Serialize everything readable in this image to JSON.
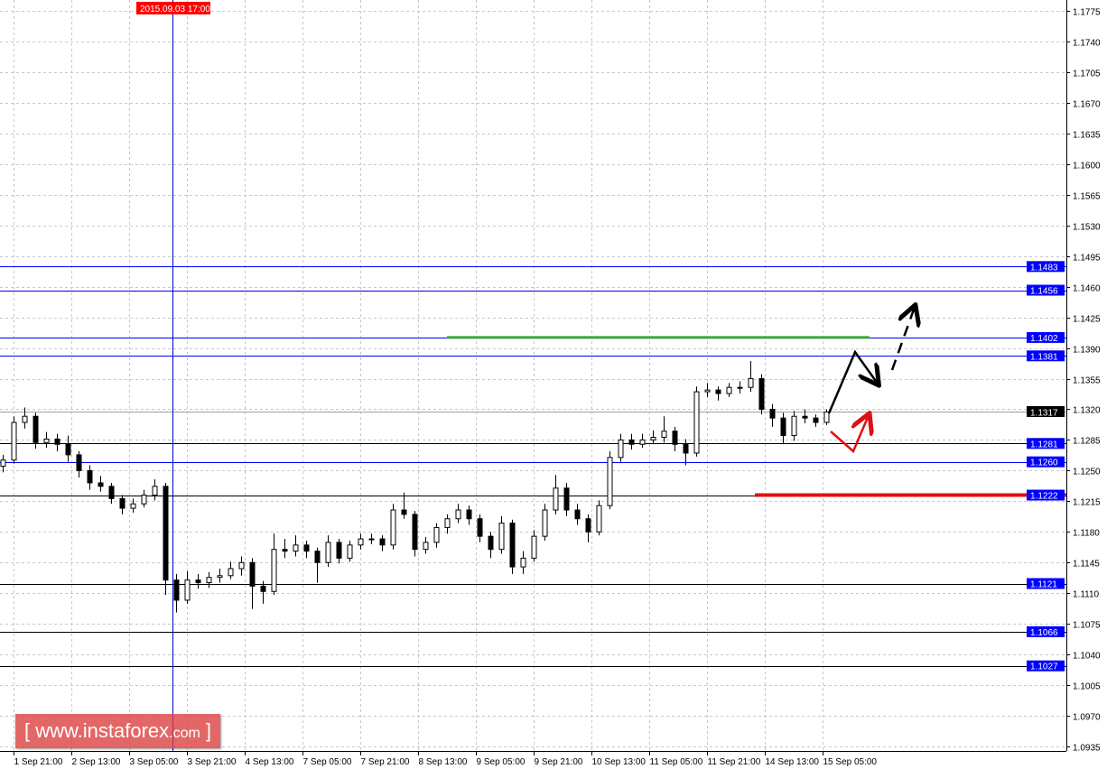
{
  "chart_data": {
    "type": "candlestick",
    "symbol_timeframe": "H1",
    "ylim": [
      1.0935,
      1.1775
    ],
    "y_ticks": [
      "1.1775",
      "1.1740",
      "1.1705",
      "1.1670",
      "1.1635",
      "1.1600",
      "1.1565",
      "1.1530",
      "1.1495",
      "1.1460",
      "1.1425",
      "1.1390",
      "1.1355",
      "1.1320",
      "1.1285",
      "1.1250",
      "1.1215",
      "1.1180",
      "1.1145",
      "1.1110",
      "1.1075",
      "1.1040",
      "1.1005",
      "1.0970",
      "1.0935"
    ],
    "x_ticks": [
      "1 Sep 21:00",
      "2 Sep 13:00",
      "3 Sep 05:00",
      "3 Sep 21:00",
      "4 Sep 13:00",
      "7 Sep 05:00",
      "7 Sep 21:00",
      "8 Sep 13:00",
      "9 Sep 05:00",
      "9 Sep 21:00",
      "10 Sep 13:00",
      "11 Sep 05:00",
      "11 Sep 21:00",
      "14 Sep 13:00",
      "15 Sep 05:00"
    ],
    "grid": true,
    "crosshair_time": "2015.09.03 17:00",
    "current_price": "1.1317",
    "levels": [
      {
        "price": "1.1483",
        "color": "#0000ff"
      },
      {
        "price": "1.1456",
        "color": "#0000ff"
      },
      {
        "price": "1.1402",
        "color": "#0000ff"
      },
      {
        "price": "1.1381",
        "color": "#0000ff"
      },
      {
        "price": "1.1281",
        "color": "#000000"
      },
      {
        "price": "1.1260",
        "color": "#0000ff"
      },
      {
        "price": "1.1222",
        "color": "#000000"
      },
      {
        "price": "1.1121",
        "color": "#000000"
      },
      {
        "price": "1.1066",
        "color": "#000000"
      },
      {
        "price": "1.1027",
        "color": "#000000"
      }
    ],
    "target_line": {
      "price": 1.1402,
      "color": "#3aa63a"
    },
    "stop_line": {
      "price": 1.1222,
      "color": "#e01010"
    },
    "ohlc": [
      [
        1.1255,
        1.1268,
        1.1248,
        1.1262
      ],
      [
        1.1262,
        1.1312,
        1.1258,
        1.1305
      ],
      [
        1.1305,
        1.1322,
        1.1298,
        1.1312
      ],
      [
        1.1312,
        1.1316,
        1.1275,
        1.1282
      ],
      [
        1.1282,
        1.1294,
        1.1276,
        1.1286
      ],
      [
        1.1286,
        1.1292,
        1.1272,
        1.128
      ],
      [
        1.128,
        1.129,
        1.126,
        1.1268
      ],
      [
        1.1268,
        1.1272,
        1.1242,
        1.125
      ],
      [
        1.125,
        1.1256,
        1.1228,
        1.1236
      ],
      [
        1.1236,
        1.1244,
        1.1226,
        1.1232
      ],
      [
        1.1232,
        1.1236,
        1.1212,
        1.1218
      ],
      [
        1.1218,
        1.1222,
        1.12,
        1.1207
      ],
      [
        1.1207,
        1.1218,
        1.1202,
        1.1212
      ],
      [
        1.1212,
        1.1228,
        1.1208,
        1.1222
      ],
      [
        1.1222,
        1.124,
        1.1216,
        1.1232
      ],
      [
        1.1232,
        1.1236,
        1.1108,
        1.1125
      ],
      [
        1.1125,
        1.1132,
        1.1088,
        1.1102
      ],
      [
        1.1102,
        1.1135,
        1.1098,
        1.1125
      ],
      [
        1.1125,
        1.1132,
        1.1115,
        1.1122
      ],
      [
        1.1122,
        1.1134,
        1.1116,
        1.1128
      ],
      [
        1.1128,
        1.1138,
        1.1122,
        1.113
      ],
      [
        1.113,
        1.1146,
        1.1126,
        1.1138
      ],
      [
        1.1138,
        1.1152,
        1.113,
        1.1145
      ],
      [
        1.1145,
        1.115,
        1.1092,
        1.1118
      ],
      [
        1.1118,
        1.1124,
        1.1098,
        1.1112
      ],
      [
        1.1112,
        1.1178,
        1.1108,
        1.116
      ],
      [
        1.116,
        1.1172,
        1.115,
        1.1158
      ],
      [
        1.1158,
        1.1176,
        1.1152,
        1.1165
      ],
      [
        1.1165,
        1.117,
        1.115,
        1.1158
      ],
      [
        1.1158,
        1.1162,
        1.1122,
        1.1145
      ],
      [
        1.1145,
        1.1176,
        1.114,
        1.1168
      ],
      [
        1.1168,
        1.1172,
        1.1144,
        1.115
      ],
      [
        1.115,
        1.117,
        1.1146,
        1.1165
      ],
      [
        1.1165,
        1.1178,
        1.116,
        1.1172
      ],
      [
        1.1172,
        1.1178,
        1.1166,
        1.1172
      ],
      [
        1.1172,
        1.1176,
        1.1158,
        1.1165
      ],
      [
        1.1165,
        1.1212,
        1.116,
        1.1205
      ],
      [
        1.1205,
        1.1225,
        1.1195,
        1.12
      ],
      [
        1.12,
        1.1204,
        1.1152,
        1.116
      ],
      [
        1.116,
        1.1174,
        1.1155,
        1.1168
      ],
      [
        1.1168,
        1.119,
        1.1162,
        1.1185
      ],
      [
        1.1185,
        1.12,
        1.1178,
        1.1195
      ],
      [
        1.1195,
        1.1212,
        1.119,
        1.1205
      ],
      [
        1.1205,
        1.121,
        1.1188,
        1.1195
      ],
      [
        1.1195,
        1.12,
        1.1168,
        1.1175
      ],
      [
        1.1175,
        1.118,
        1.115,
        1.116
      ],
      [
        1.116,
        1.1198,
        1.1155,
        1.119
      ],
      [
        1.119,
        1.1194,
        1.1132,
        1.114
      ],
      [
        1.114,
        1.1158,
        1.1132,
        1.115
      ],
      [
        1.115,
        1.1182,
        1.1146,
        1.1175
      ],
      [
        1.1175,
        1.1212,
        1.117,
        1.1205
      ],
      [
        1.1205,
        1.1245,
        1.12,
        1.123
      ],
      [
        1.123,
        1.1236,
        1.1198,
        1.1205
      ],
      [
        1.1205,
        1.1212,
        1.1188,
        1.1195
      ],
      [
        1.1195,
        1.12,
        1.1168,
        1.118
      ],
      [
        1.118,
        1.1216,
        1.1176,
        1.121
      ],
      [
        1.121,
        1.1272,
        1.1206,
        1.1265
      ],
      [
        1.1265,
        1.1292,
        1.126,
        1.1285
      ],
      [
        1.1285,
        1.1292,
        1.1274,
        1.128
      ],
      [
        1.128,
        1.1292,
        1.1276,
        1.1285
      ],
      [
        1.1285,
        1.1296,
        1.128,
        1.1288
      ],
      [
        1.1288,
        1.1312,
        1.1282,
        1.1295
      ],
      [
        1.1295,
        1.13,
        1.1272,
        1.128
      ],
      [
        1.128,
        1.1286,
        1.1256,
        1.127
      ],
      [
        1.127,
        1.1346,
        1.1266,
        1.134
      ],
      [
        1.134,
        1.135,
        1.1334,
        1.1342
      ],
      [
        1.1342,
        1.1346,
        1.133,
        1.1338
      ],
      [
        1.1338,
        1.135,
        1.1334,
        1.1345
      ],
      [
        1.1345,
        1.1352,
        1.1338,
        1.1345
      ],
      [
        1.1345,
        1.1375,
        1.134,
        1.1355
      ],
      [
        1.1355,
        1.136,
        1.1314,
        1.132
      ],
      [
        1.132,
        1.1326,
        1.13,
        1.131
      ],
      [
        1.131,
        1.1316,
        1.128,
        1.129
      ],
      [
        1.129,
        1.1318,
        1.1284,
        1.1312
      ],
      [
        1.1312,
        1.132,
        1.1304,
        1.131
      ],
      [
        1.131,
        1.1314,
        1.13,
        1.1305
      ],
      [
        1.1305,
        1.132,
        1.1302,
        1.1317
      ]
    ]
  },
  "watermark": {
    "open": "[ ",
    "site": "www.instaforex",
    "tld": ".com",
    "close": " ]"
  },
  "colors": {
    "bull": "#ffffff",
    "bear": "#000000",
    "level_label": "#0000ff",
    "crosshair": "#0000cc",
    "time_label": "#ff0000"
  }
}
